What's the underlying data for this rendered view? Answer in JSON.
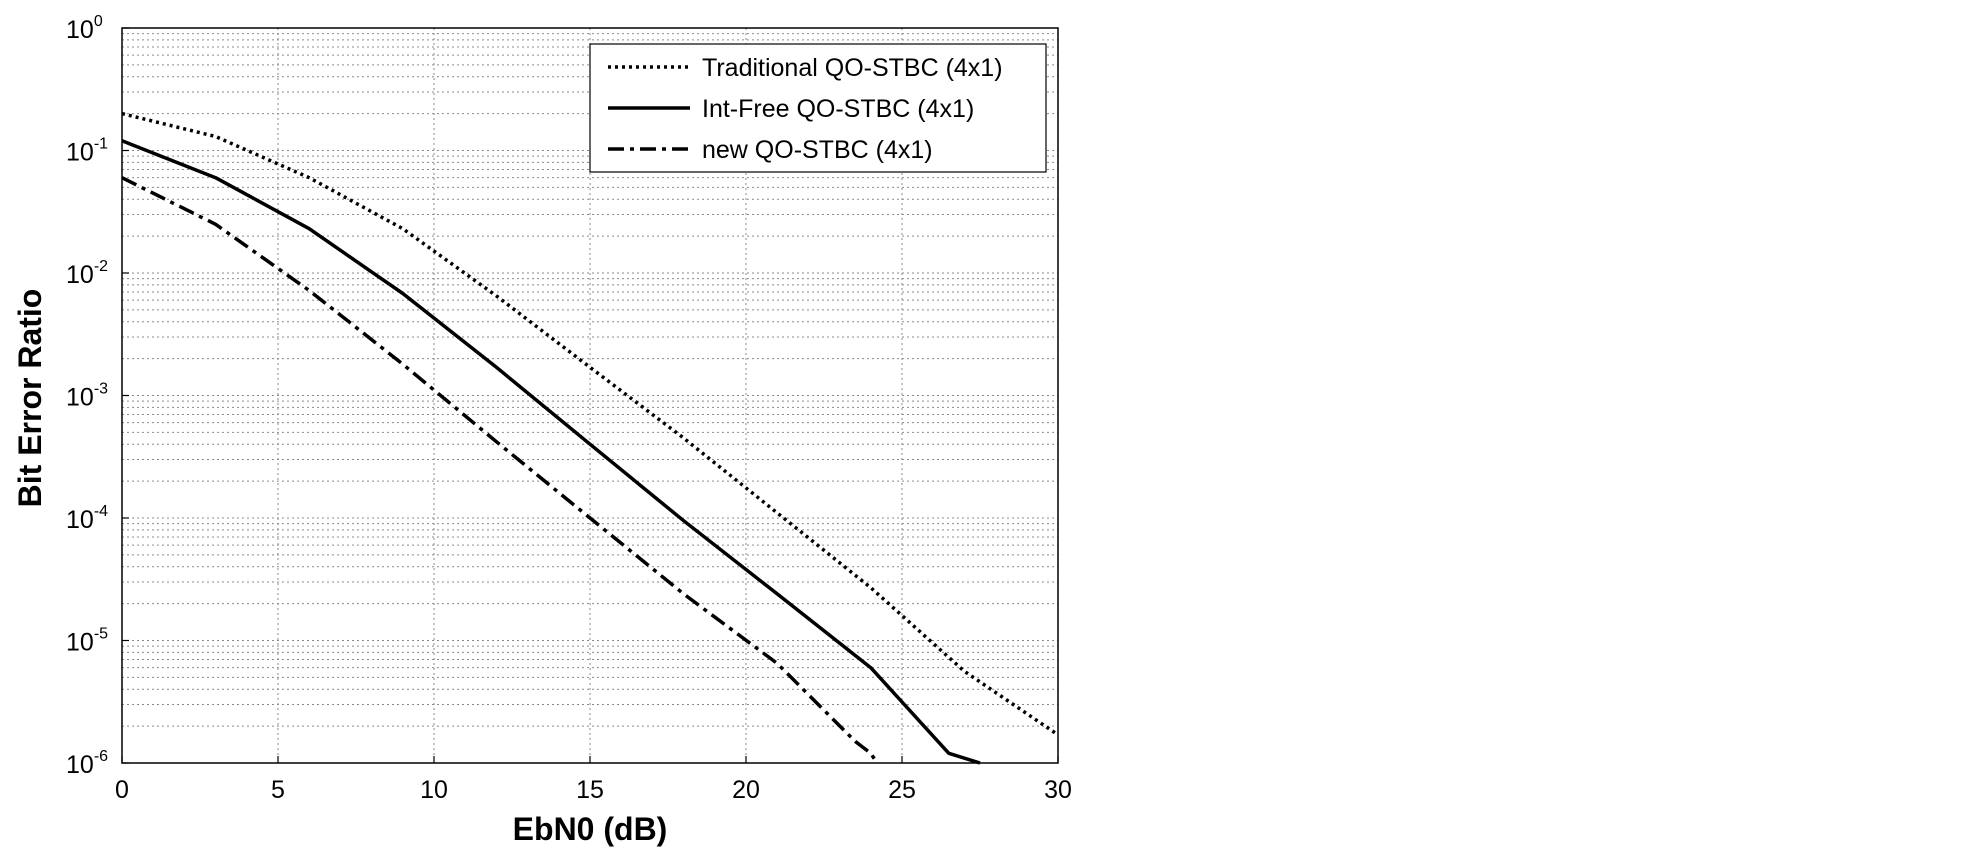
{
  "chart_data": {
    "type": "line",
    "xlabel": "EbN0 (dB)",
    "ylabel": "Bit Error Ratio",
    "xlim": [
      0,
      30
    ],
    "ylim": [
      1e-06,
      1
    ],
    "yscale": "log",
    "grid": true,
    "legend_position": "top-right",
    "x_ticks": [
      "0",
      "5",
      "10",
      "15",
      "20",
      "25",
      "30"
    ],
    "y_ticks": [
      {
        "base": "10",
        "exp": "0"
      },
      {
        "base": "10",
        "exp": "-1"
      },
      {
        "base": "10",
        "exp": "-2"
      },
      {
        "base": "10",
        "exp": "-3"
      },
      {
        "base": "10",
        "exp": "-4"
      },
      {
        "base": "10",
        "exp": "-5"
      },
      {
        "base": "10",
        "exp": "-6"
      }
    ],
    "series": [
      {
        "name": "Traditional QO-STBC (4x1)",
        "style": "dotted",
        "x": [
          0,
          3,
          6,
          9,
          12,
          15,
          18,
          21,
          24,
          27,
          30
        ],
        "y": [
          0.2,
          0.13,
          0.06,
          0.023,
          0.0065,
          0.0017,
          0.00045,
          0.00011,
          2.7e-05,
          5.6e-06,
          1.7e-06
        ]
      },
      {
        "name": "Int-Free QO-STBC (4x1)",
        "style": "solid",
        "x": [
          0,
          3,
          6,
          9,
          12,
          15,
          18,
          21,
          24,
          26.5,
          27.5
        ],
        "y": [
          0.12,
          0.06,
          0.023,
          0.0068,
          0.0017,
          0.0004,
          9.5e-05,
          2.4e-05,
          6e-06,
          1.2e-06,
          1e-06
        ]
      },
      {
        "name": "new QO-STBC (4x1)",
        "style": "dashdot",
        "x": [
          0,
          3,
          6,
          9,
          12,
          15,
          18,
          21,
          23.5,
          24,
          24.2
        ],
        "y": [
          0.06,
          0.025,
          0.0072,
          0.0018,
          0.00042,
          0.0001,
          2.4e-05,
          6.5e-06,
          1.5e-06,
          1.2e-06,
          1e-06
        ]
      }
    ]
  }
}
